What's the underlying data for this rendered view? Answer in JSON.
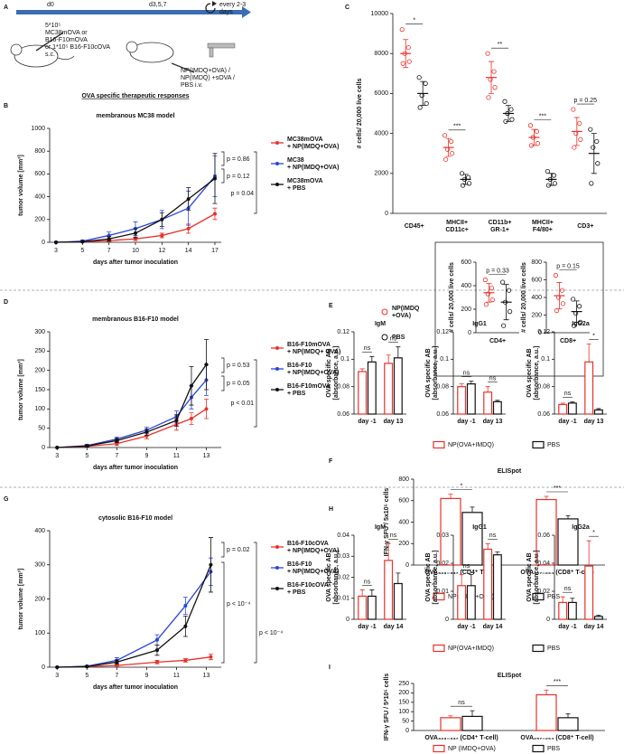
{
  "panel_labels": [
    "A",
    "B",
    "C",
    "D",
    "E",
    "F",
    "G",
    "H",
    "I"
  ],
  "schema": {
    "timepoints": [
      "d0",
      "d3,5,7"
    ],
    "repeat": "every 2-3\ndays",
    "inoculation": "5*10⁵\nMC38mOVA or\nB16-F10mOVA\nor 1*10⁵ B16-F10cOVA\ns.c.",
    "treatment": "NP(IMDQ+OVA) /\nNP(IMDQ) +sOVA /\nPBS i.v.",
    "caption": "OVA specific therapeutic responses"
  },
  "chart_data": [
    {
      "type": "line",
      "title": "membranous MC38 model",
      "x_label": "days after tumor inoculation",
      "y_label": "tumor volume [mm³]",
      "categories": [
        "3",
        "5",
        "7",
        "10",
        "12",
        "14",
        "17"
      ],
      "ylim": [
        0,
        1000
      ],
      "yticks": [
        0,
        200,
        400,
        600,
        800,
        1000
      ],
      "series": [
        {
          "name": "MC38mOVA\n+ NP(IMDQ+OVA)",
          "color": "#e8312a",
          "values": [
            0,
            5,
            15,
            30,
            60,
            120,
            250
          ],
          "errors": [
            0,
            3,
            8,
            15,
            20,
            40,
            50
          ]
        },
        {
          "name": "MC38\n+ NP(IMDQ+OVA)",
          "color": "#2a46d8",
          "values": [
            0,
            10,
            60,
            120,
            200,
            300,
            580
          ],
          "errors": [
            0,
            10,
            30,
            60,
            80,
            150,
            180
          ]
        },
        {
          "name": "MC38mOVA\n+ PBS",
          "color": "#111111",
          "values": [
            0,
            5,
            30,
            80,
            200,
            380,
            560
          ],
          "errors": [
            0,
            5,
            20,
            40,
            60,
            100,
            220
          ]
        }
      ],
      "annotations": [
        "p = 0.86",
        "p = 0.12",
        "p = 0.04"
      ]
    },
    {
      "type": "dot",
      "y_label": "# cells/ 20,000 live cells",
      "categories": [
        "CD45+",
        "MHCII+\nCD11c+",
        "CD11b+\nGR-1+",
        "MHCII+\nF4/80+",
        "CD3+"
      ],
      "ylim": [
        0,
        10000
      ],
      "yticks": [
        0,
        2000,
        4000,
        6000,
        8000,
        10000
      ],
      "series": [
        {
          "name": "NP(IMDQ\n+OVA)",
          "color": "#e8312a",
          "means": [
            8000,
            3300,
            6800,
            3800,
            4100
          ],
          "sds": [
            700,
            450,
            800,
            400,
            700
          ],
          "points": [
            [
              9200,
              8300,
              8000,
              7600,
              7500
            ],
            [
              3900,
              3600,
              3200,
              3000,
              2700
            ],
            [
              8000,
              7100,
              6700,
              6300,
              5800
            ],
            [
              4400,
              4100,
              3800,
              3500,
              3400
            ],
            [
              5200,
              4500,
              4000,
              3700,
              3300
            ]
          ]
        },
        {
          "name": "PBS",
          "color": "#111111",
          "means": [
            6000,
            1700,
            5000,
            1700,
            3000
          ],
          "sds": [
            600,
            250,
            400,
            300,
            1000
          ],
          "points": [
            [
              6800,
              6500,
              5900,
              5500,
              5300
            ],
            [
              2000,
              1800,
              1700,
              1500,
              1400
            ],
            [
              5600,
              5200,
              5000,
              4700,
              4600
            ],
            [
              2100,
              1900,
              1700,
              1500,
              1400
            ],
            [
              4200,
              3600,
              3300,
              2500,
              1500
            ]
          ]
        }
      ],
      "annotations": [
        "*",
        "***",
        "**",
        "***",
        "p = 0.25"
      ]
    },
    {
      "type": "dot",
      "y_label": "# cells/ 20,000 live cells",
      "categories": [
        "CD4+"
      ],
      "ylim": [
        0,
        600
      ],
      "yticks": [
        0,
        200,
        400,
        600
      ],
      "series": [
        {
          "color": "#e8312a",
          "means": [
            340
          ],
          "sds": [
            80
          ],
          "points": [
            [
              450,
              380,
              330,
              280,
              240
            ]
          ]
        },
        {
          "color": "#111111",
          "means": [
            260
          ],
          "sds": [
            150
          ],
          "points": [
            [
              430,
              360,
              260,
              180,
              60
            ]
          ]
        }
      ],
      "annotations": [
        "p = 0.33"
      ]
    },
    {
      "type": "dot",
      "y_label": "# cells/ 20,000 live cells",
      "categories": [
        "CD8+"
      ],
      "ylim": [
        0,
        800
      ],
      "yticks": [
        0,
        200,
        400,
        600,
        800
      ],
      "series": [
        {
          "color": "#e8312a",
          "means": [
            420
          ],
          "sds": [
            150
          ],
          "points": [
            [
              650,
              480,
              400,
              330,
              250
            ]
          ]
        },
        {
          "color": "#111111",
          "means": [
            240
          ],
          "sds": [
            120
          ],
          "points": [
            [
              380,
              300,
              220,
              120,
              80
            ]
          ]
        }
      ],
      "annotations": [
        "p = 0.15"
      ]
    },
    {
      "type": "line",
      "title": "membranous B16-F10 model",
      "x_label": "days after tumor inoculation",
      "y_label": "tumor volume [mm³]",
      "x": [
        3,
        5,
        7,
        9,
        11,
        12,
        13
      ],
      "xlim": [
        2.5,
        14
      ],
      "xticks": [
        3,
        5,
        7,
        9,
        11,
        13
      ],
      "ylim": [
        0,
        300
      ],
      "yticks": [
        0,
        50,
        100,
        150,
        200,
        250,
        300
      ],
      "series": [
        {
          "name": "B16-F10mOVA\n+ NP(IMDQ+ OVA)",
          "color": "#e8312a",
          "values": [
            0,
            3,
            10,
            30,
            60,
            75,
            100
          ],
          "errors": [
            0,
            2,
            5,
            8,
            15,
            15,
            25
          ]
        },
        {
          "name": "B16-F10\n+ NP(IMDQ+OVA)",
          "color": "#2a46d8",
          "values": [
            0,
            5,
            22,
            45,
            80,
            130,
            175
          ],
          "errors": [
            0,
            3,
            5,
            8,
            15,
            30,
            40
          ]
        },
        {
          "name": "B16-F10mOVA\n+ PBS",
          "color": "#111111",
          "values": [
            0,
            4,
            18,
            40,
            70,
            160,
            215
          ],
          "errors": [
            0,
            3,
            5,
            8,
            15,
            50,
            65
          ]
        }
      ],
      "annotations": [
        "p = 0.53",
        "p = 0.05",
        "p < 0.01"
      ]
    },
    {
      "type": "bar",
      "title": "IgM",
      "y_label": "OVA specific AB\n[absorbance, a.u.]",
      "categories": [
        "day -1",
        "day 13"
      ],
      "ylim": [
        0.06,
        0.12
      ],
      "yticks": [
        0.06,
        0.08,
        0.1,
        0.12
      ],
      "series": [
        {
          "name": "NP(OVA+IMDQ)",
          "color": "#e8312a",
          "values": [
            0.091,
            0.097
          ],
          "errors": [
            0.002,
            0.006
          ]
        },
        {
          "name": "PBS",
          "color": "#111111",
          "values": [
            0.098,
            0.101
          ],
          "errors": [
            0.004,
            0.008
          ]
        }
      ],
      "annotations": [
        "ns",
        "ns"
      ]
    },
    {
      "type": "bar",
      "title": "IgG1",
      "y_label": "OVA specific AB\n[absorbance, a.u.]",
      "categories": [
        "day -1",
        "day 13"
      ],
      "ylim": [
        0.06,
        0.12
      ],
      "yticks": [
        0.06,
        0.08,
        0.1,
        0.12
      ],
      "series": [
        {
          "color": "#e8312a",
          "values": [
            0.08,
            0.076
          ],
          "errors": [
            0.002,
            0.004
          ]
        },
        {
          "color": "#111111",
          "values": [
            0.082,
            0.069
          ],
          "errors": [
            0.002,
            0.001
          ]
        }
      ],
      "annotations": [
        "ns",
        "ns"
      ]
    },
    {
      "type": "bar",
      "title": "IgG2a",
      "y_label": "OVA specific AB\n[absorbance, a.u.]",
      "categories": [
        "day -1",
        "day 13"
      ],
      "ylim": [
        0.06,
        0.12
      ],
      "yticks": [
        0.06,
        0.08,
        0.1,
        0.12
      ],
      "series": [
        {
          "color": "#e8312a",
          "values": [
            0.067,
            0.098
          ],
          "errors": [
            0.001,
            0.013
          ]
        },
        {
          "color": "#111111",
          "values": [
            0.068,
            0.063
          ],
          "errors": [
            0.001,
            0.001
          ]
        }
      ],
      "annotations": [
        "ns",
        "*"
      ]
    },
    {
      "type": "bar",
      "title": "ELISpot",
      "y_label": "IFN-γ SFU / 5x10⁵ cells",
      "categories": [
        "OVA₃₂₃₋₃₃₇ (CD4⁺ T-cell)",
        "OVA₂₅₇₋₂₆₄ (CD8⁺ T-cell)"
      ],
      "ylim": [
        0,
        800
      ],
      "yticks": [
        0,
        200,
        400,
        600,
        800
      ],
      "series": [
        {
          "name": "NP(IMDQ+OVA)",
          "color": "#e8312a",
          "values": [
            620,
            610
          ],
          "errors": [
            40,
            30
          ]
        },
        {
          "name": "PBS",
          "color": "#111111",
          "values": [
            490,
            430
          ],
          "errors": [
            50,
            30
          ]
        }
      ],
      "annotations": [
        "*",
        "***"
      ]
    },
    {
      "type": "line",
      "title": "cytosolic B16-F10 model",
      "x_label": "days after tumor inoculation",
      "y_label": "tumor volume [mm³]",
      "x": [
        3,
        5,
        7,
        9.7,
        11.6,
        13.3
      ],
      "xlim": [
        2.5,
        14
      ],
      "xticks": [
        3,
        5,
        7,
        9,
        11,
        13
      ],
      "ylim": [
        0,
        400
      ],
      "yticks": [
        0,
        100,
        200,
        300,
        400
      ],
      "series": [
        {
          "name": "B16-F10cOVA\n+ NP(IMDQ+OVA)",
          "color": "#e8312a",
          "values": [
            0,
            2,
            5,
            15,
            20,
            30
          ],
          "errors": [
            0,
            1,
            2,
            5,
            5,
            8
          ]
        },
        {
          "name": "B16-F10\n+ NP(IMDQ+OVA)",
          "color": "#2a46d8",
          "values": [
            0,
            3,
            20,
            80,
            180,
            280
          ],
          "errors": [
            0,
            2,
            8,
            15,
            25,
            40
          ]
        },
        {
          "name": "B16-F10cOVA\n+ PBS",
          "color": "#111111",
          "values": [
            0,
            2,
            15,
            50,
            120,
            300
          ],
          "errors": [
            0,
            2,
            6,
            15,
            30,
            80
          ]
        }
      ],
      "annotations": [
        "p = 0.02",
        "p < 10⁻⁴",
        "p < 10⁻⁴"
      ]
    },
    {
      "type": "bar",
      "title": "IgM",
      "y_label": "OVA specific AB\n[absorbance, a.u.]",
      "categories": [
        "day -1",
        "day 14"
      ],
      "ylim": [
        0,
        0.04
      ],
      "yticks": [
        0,
        0.01,
        0.02,
        0.03,
        0.04
      ],
      "series": [
        {
          "name": "NP(OVA+IMDQ)",
          "color": "#e8312a",
          "values": [
            0.011,
            0.028
          ],
          "errors": [
            0.003,
            0.008
          ]
        },
        {
          "name": "PBS",
          "color": "#111111",
          "values": [
            0.011,
            0.017
          ],
          "errors": [
            0.003,
            0.005
          ]
        }
      ],
      "annotations": [
        "ns",
        "ns"
      ]
    },
    {
      "type": "bar",
      "title": "IgG1",
      "y_label": "OVA specific AB\n[absorbance, a.u.]",
      "categories": [
        "day -1",
        "day 14"
      ],
      "ylim": [
        0,
        0.03
      ],
      "yticks": [
        0,
        0.01,
        0.02,
        0.03
      ],
      "series": [
        {
          "color": "#e8312a",
          "values": [
            0.012,
            0.025
          ],
          "errors": [
            0.004,
            0.002
          ]
        },
        {
          "color": "#111111",
          "values": [
            0.012,
            0.023
          ],
          "errors": [
            0.004,
            0.001
          ]
        }
      ],
      "annotations": [
        "ns",
        "ns"
      ]
    },
    {
      "type": "bar",
      "title": "IgG2a",
      "y_label": "OVA specific AB\n[absorbance, a.u.]",
      "categories": [
        "day -1",
        "day 14"
      ],
      "ylim": [
        0,
        0.06
      ],
      "yticks": [
        0,
        0.02,
        0.04,
        0.06
      ],
      "series": [
        {
          "color": "#e8312a",
          "values": [
            0.012,
            0.038
          ],
          "errors": [
            0.004,
            0.018
          ]
        },
        {
          "color": "#111111",
          "values": [
            0.012,
            0.002
          ],
          "errors": [
            0.003,
            0.001
          ]
        }
      ],
      "annotations": [
        "ns",
        "*"
      ]
    },
    {
      "type": "bar",
      "title": "ELISpot",
      "y_label": "IFN-γ SFU / 5*10⁵ cells",
      "categories": [
        "OVA₃₂₃₋₃₃₇ (CD4⁺ T-cell)",
        "OVA₂₅₇₋₂₆₄ (CD8⁺ T-cell)"
      ],
      "ylim": [
        0,
        250
      ],
      "yticks": [
        0,
        50,
        100,
        150,
        200,
        250
      ],
      "series": [
        {
          "name": "NP (IMDQ+OVA)",
          "color": "#e8312a",
          "values": [
            68,
            190
          ],
          "errors": [
            10,
            25
          ]
        },
        {
          "name": "PBS",
          "color": "#111111",
          "values": [
            75,
            68
          ],
          "errors": [
            30,
            20
          ]
        }
      ],
      "annotations": [
        "ns",
        "***"
      ]
    }
  ]
}
